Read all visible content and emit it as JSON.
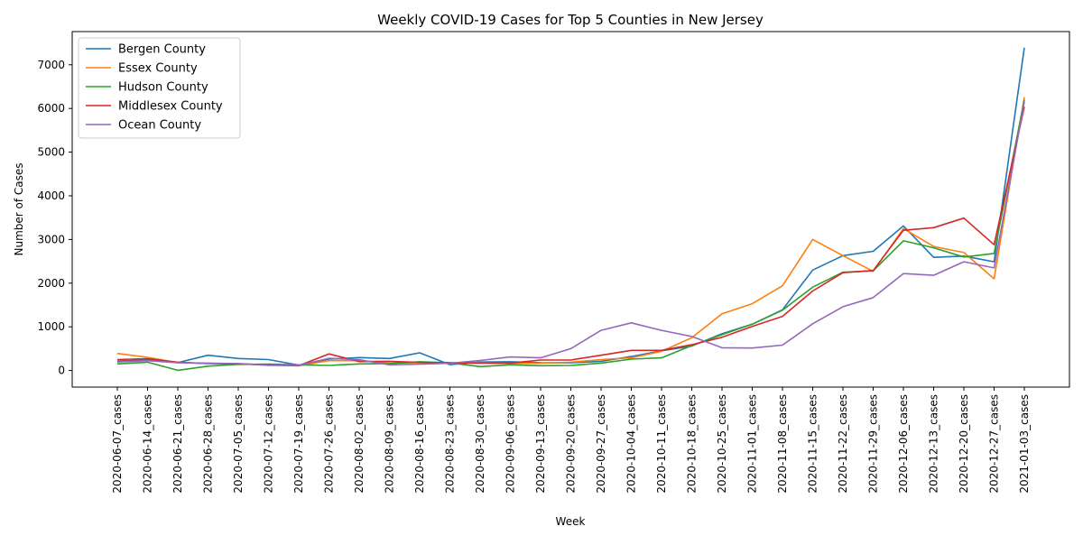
{
  "chart_data": {
    "type": "line",
    "title": "Weekly COVID-19 Cases for Top 5 Counties in New Jersey",
    "xlabel": "Week",
    "ylabel": "Number of Cases",
    "ylim": [
      -380,
      7760
    ],
    "yticks": [
      0,
      1000,
      2000,
      3000,
      4000,
      5000,
      6000,
      7000
    ],
    "grid": false,
    "legend_position": "upper-left",
    "categories": [
      "2020-06-07_cases",
      "2020-06-14_cases",
      "2020-06-21_cases",
      "2020-06-28_cases",
      "2020-07-05_cases",
      "2020-07-12_cases",
      "2020-07-19_cases",
      "2020-07-26_cases",
      "2020-08-02_cases",
      "2020-08-09_cases",
      "2020-08-16_cases",
      "2020-08-23_cases",
      "2020-08-30_cases",
      "2020-09-06_cases",
      "2020-09-13_cases",
      "2020-09-20_cases",
      "2020-09-27_cases",
      "2020-10-04_cases",
      "2020-10-11_cases",
      "2020-10-18_cases",
      "2020-10-25_cases",
      "2020-11-01_cases",
      "2020-11-08_cases",
      "2020-11-15_cases",
      "2020-11-22_cases",
      "2020-11-29_cases",
      "2020-12-06_cases",
      "2020-12-13_cases",
      "2020-12-20_cases",
      "2020-12-27_cases",
      "2021-01-03_cases"
    ],
    "series": [
      {
        "name": "Bergen County",
        "color": "#1f77b4",
        "values": [
          215,
          250,
          180,
          350,
          275,
          250,
          125,
          260,
          295,
          275,
          405,
          135,
          195,
          200,
          180,
          175,
          210,
          320,
          450,
          560,
          840,
          1060,
          1390,
          2300,
          2630,
          2730,
          3310,
          2590,
          2620,
          2490,
          7390
        ]
      },
      {
        "name": "Essex County",
        "color": "#ff7f0e",
        "values": [
          390,
          300,
          180,
          165,
          155,
          120,
          110,
          225,
          225,
          165,
          185,
          175,
          180,
          160,
          170,
          190,
          250,
          290,
          440,
          750,
          1300,
          1530,
          1940,
          3000,
          2630,
          2270,
          3250,
          2840,
          2700,
          2100,
          6260
        ]
      },
      {
        "name": "Hudson County",
        "color": "#2ca02c",
        "values": [
          150,
          190,
          5,
          100,
          140,
          145,
          130,
          115,
          150,
          160,
          200,
          175,
          90,
          130,
          110,
          115,
          170,
          260,
          290,
          570,
          820,
          1060,
          1380,
          1910,
          2250,
          2280,
          2970,
          2810,
          2600,
          2680,
          6200
        ]
      },
      {
        "name": "Middlesex County",
        "color": "#d62728",
        "values": [
          250,
          270,
          190,
          160,
          150,
          130,
          110,
          380,
          205,
          210,
          185,
          175,
          170,
          170,
          240,
          240,
          350,
          460,
          460,
          590,
          760,
          1010,
          1240,
          1820,
          2240,
          2290,
          3210,
          3270,
          3490,
          2880,
          6040
        ]
      },
      {
        "name": "Ocean County",
        "color": "#9467bd",
        "values": [
          195,
          225,
          180,
          165,
          160,
          120,
          120,
          280,
          245,
          130,
          145,
          165,
          230,
          310,
          290,
          500,
          920,
          1090,
          920,
          780,
          520,
          515,
          580,
          1070,
          1460,
          1670,
          2220,
          2180,
          2490,
          2350,
          6150
        ]
      }
    ]
  }
}
